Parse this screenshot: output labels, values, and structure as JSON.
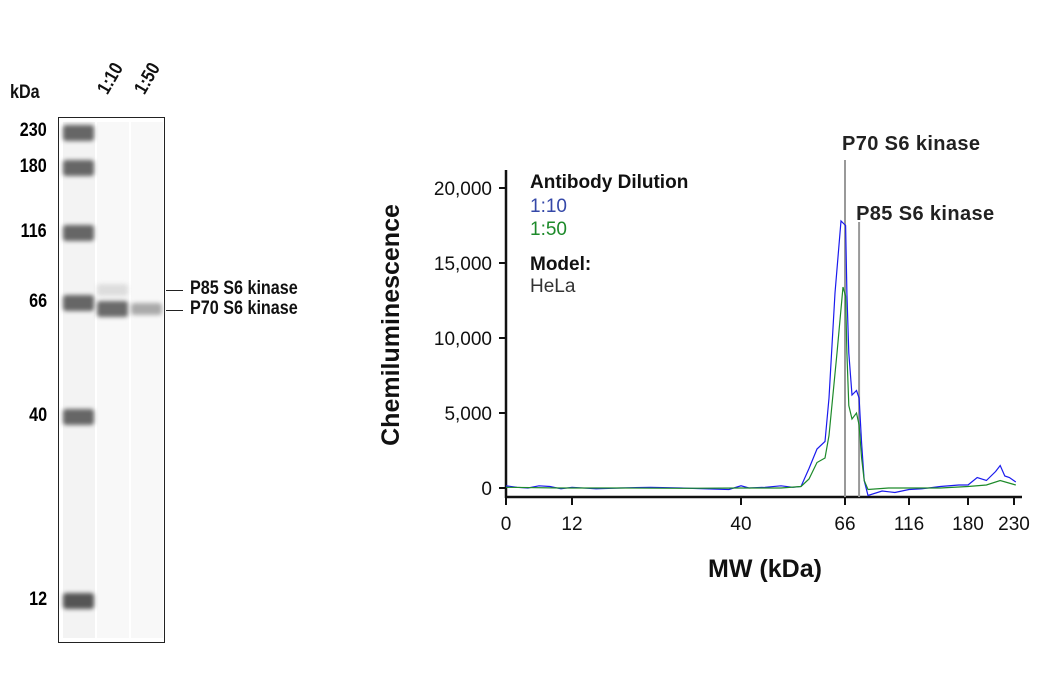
{
  "gel": {
    "unit_label": "kDa",
    "lane_labels": [
      "1:10",
      "1:50"
    ],
    "markers": [
      "230",
      "180",
      "116",
      "66",
      "40",
      "12"
    ],
    "band_labels": [
      "P85 S6 kinase",
      "P70 S6 kinase"
    ]
  },
  "chart_data": {
    "type": "line",
    "xlabel": "MW (kDa)",
    "ylabel": "Chemiluminescence",
    "x_ticks": [
      0,
      12,
      40,
      66,
      116,
      180,
      230
    ],
    "x_tick_labels": [
      "0",
      "12",
      "40",
      "66",
      "116",
      "180",
      "230"
    ],
    "y_ticks": [
      0,
      5000,
      10000,
      15000,
      20000
    ],
    "y_tick_labels": [
      "0",
      "5,000",
      "10,000",
      "15,000",
      "20,000"
    ],
    "ylim": [
      -600,
      21000
    ],
    "grid": false,
    "legend": {
      "title": "Antibody Dilution",
      "model_title": "Model:",
      "model": "HeLa",
      "placement": "top-left"
    },
    "annotations": [
      {
        "label": "P70 S6 kinase",
        "x": 66
      },
      {
        "label": "P85 S6 kinase",
        "x": 77
      }
    ],
    "series": [
      {
        "name": "1:10",
        "color": "#1a1aee",
        "label_color": "#3548a8",
        "points": [
          [
            0,
            150
          ],
          [
            2,
            50
          ],
          [
            4,
            0
          ],
          [
            6,
            150
          ],
          [
            8,
            100
          ],
          [
            10,
            -50
          ],
          [
            12,
            50
          ],
          [
            16,
            -50
          ],
          [
            20,
            0
          ],
          [
            25,
            50
          ],
          [
            30,
            0
          ],
          [
            34,
            -50
          ],
          [
            38,
            -100
          ],
          [
            40,
            150
          ],
          [
            42,
            0
          ],
          [
            46,
            50
          ],
          [
            50,
            150
          ],
          [
            53,
            50
          ],
          [
            55,
            100
          ],
          [
            57,
            1300
          ],
          [
            59,
            2600
          ],
          [
            61,
            3100
          ],
          [
            62,
            6000
          ],
          [
            63.5,
            13000
          ],
          [
            65,
            17800
          ],
          [
            66.5,
            17500
          ],
          [
            67.5,
            13000
          ],
          [
            69,
            9000
          ],
          [
            71.5,
            6200
          ],
          [
            75,
            6500
          ],
          [
            77,
            6000
          ],
          [
            79,
            3000
          ],
          [
            81,
            500
          ],
          [
            84,
            -500
          ],
          [
            95,
            -200
          ],
          [
            105,
            -300
          ],
          [
            116,
            -100
          ],
          [
            130,
            -50
          ],
          [
            150,
            100
          ],
          [
            170,
            200
          ],
          [
            180,
            200
          ],
          [
            190,
            700
          ],
          [
            200,
            500
          ],
          [
            210,
            1100
          ],
          [
            215,
            1500
          ],
          [
            220,
            800
          ],
          [
            225,
            700
          ],
          [
            232,
            400
          ]
        ]
      },
      {
        "name": "1:50",
        "color": "#1d8a2a",
        "label_color": "#1d8a2a",
        "points": [
          [
            0,
            50
          ],
          [
            10,
            0
          ],
          [
            20,
            0
          ],
          [
            30,
            -20
          ],
          [
            40,
            0
          ],
          [
            50,
            0
          ],
          [
            55,
            100
          ],
          [
            57,
            600
          ],
          [
            59,
            1700
          ],
          [
            61,
            2000
          ],
          [
            62,
            3500
          ],
          [
            64,
            9000
          ],
          [
            65.5,
            13400
          ],
          [
            66.5,
            12800
          ],
          [
            67.5,
            9000
          ],
          [
            69,
            5500
          ],
          [
            71.5,
            4600
          ],
          [
            75,
            5000
          ],
          [
            77,
            4200
          ],
          [
            79,
            2000
          ],
          [
            81,
            500
          ],
          [
            84,
            -100
          ],
          [
            100,
            0
          ],
          [
            150,
            0
          ],
          [
            180,
            100
          ],
          [
            200,
            200
          ],
          [
            215,
            500
          ],
          [
            232,
            200
          ]
        ]
      }
    ]
  }
}
